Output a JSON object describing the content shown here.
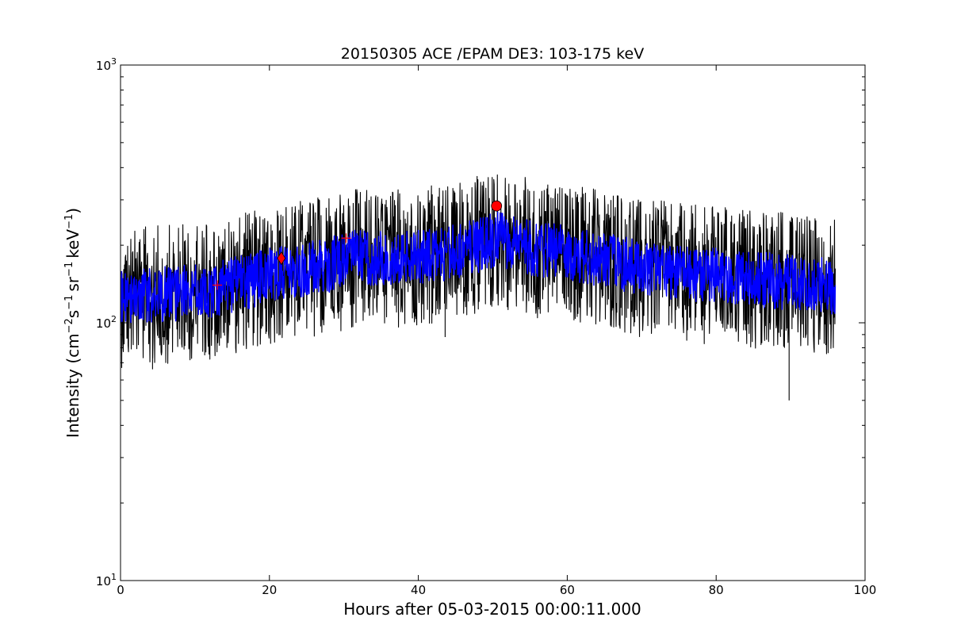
{
  "chart_data": {
    "type": "line",
    "title": "20150305 ACE /EPAM DE3: 103-175 keV",
    "xlabel": "Hours after 05-03-2015 00:00:11.000",
    "ylabel": {
      "prefix": "Intensity (cm",
      "sup1": "−2",
      "mid1": "s",
      "sup2": "−1",
      "mid2": "sr",
      "sup3": "−1",
      "mid3": "keV",
      "sup4": "−1",
      "suffix": ")"
    },
    "xlim": [
      0,
      100
    ],
    "ylim": [
      10,
      1000
    ],
    "yscale": "log",
    "xticks": [
      {
        "value": 0,
        "label": "0"
      },
      {
        "value": 20,
        "label": "20"
      },
      {
        "value": 40,
        "label": "40"
      },
      {
        "value": 60,
        "label": "60"
      },
      {
        "value": 80,
        "label": "80"
      },
      {
        "value": 100,
        "label": "100"
      }
    ],
    "yticks": [
      {
        "value": 10,
        "base": "10",
        "exp": "1"
      },
      {
        "value": 100,
        "base": "10",
        "exp": "2"
      },
      {
        "value": 1000,
        "base": "10",
        "exp": "3"
      }
    ],
    "grid": false,
    "x_end": 96,
    "trend": {
      "x": [
        0,
        4,
        8,
        12,
        16,
        20,
        24,
        28,
        32,
        36,
        40,
        44,
        48,
        51,
        54,
        58,
        62,
        66,
        70,
        74,
        78,
        82,
        86,
        90,
        94,
        96
      ],
      "y": [
        124,
        128,
        130,
        133,
        142,
        152,
        160,
        168,
        180,
        178,
        180,
        186,
        200,
        212,
        198,
        190,
        182,
        172,
        163,
        158,
        154,
        150,
        147,
        143,
        140,
        138
      ]
    },
    "series": [
      {
        "color": "#000000",
        "spread": 0.3
      },
      {
        "color": "#0000ff",
        "spread": 0.12
      }
    ],
    "markers": [
      {
        "shape": "plus",
        "x": 13.0,
        "y": 140,
        "color": "#ff0000"
      },
      {
        "shape": "diamond",
        "x": 21.6,
        "y": 178,
        "color": "#ff0000"
      },
      {
        "shape": "plus",
        "x": 30.3,
        "y": 213,
        "color": "#ff0000"
      },
      {
        "shape": "circle",
        "x": 50.5,
        "y": 284,
        "color": "#ff0000"
      }
    ],
    "dips": [
      {
        "x": 89.8,
        "y": 50
      },
      {
        "x": 43.6,
        "y": 88
      },
      {
        "x": 4.3,
        "y": 66
      }
    ]
  }
}
